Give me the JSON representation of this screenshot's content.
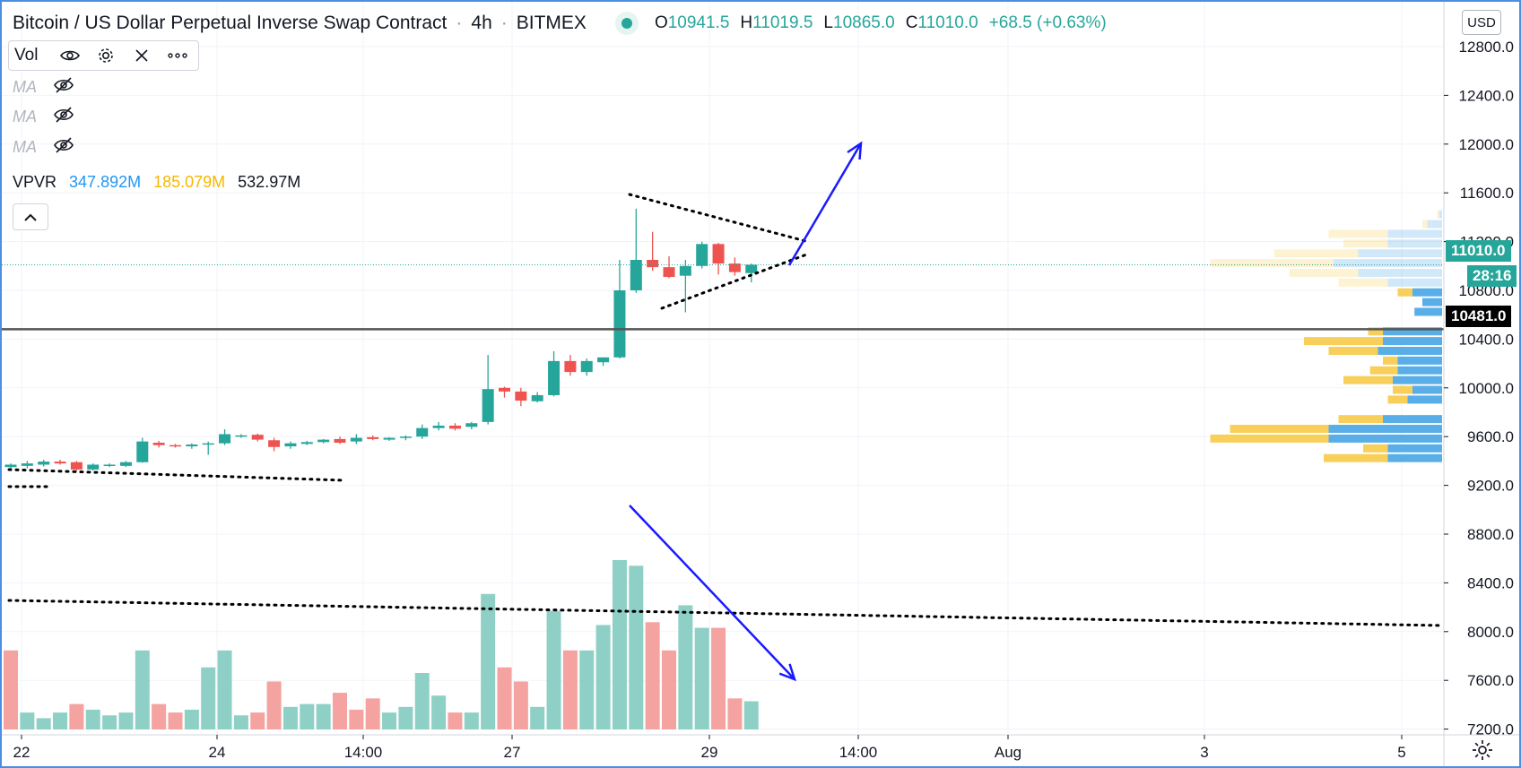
{
  "header": {
    "title": "Bitcoin / US Dollar Perpetual Inverse Swap Contract",
    "interval": "4h",
    "exchange": "BITMEX",
    "ohlc": {
      "o_label": "O",
      "o": "10941.5",
      "h_label": "H",
      "h": "11019.5",
      "l_label": "L",
      "l": "10865.0",
      "c_label": "C",
      "c": "11010.0",
      "change": "+68.5 (+0.63%)"
    }
  },
  "indicators": {
    "vol_label": "Vol",
    "ma_items": [
      {
        "label": "MA"
      },
      {
        "label": "MA"
      },
      {
        "label": "MA"
      }
    ],
    "vpvr": {
      "label": "VPVR",
      "up": "347.892M",
      "down": "185.079M",
      "total": "532.97M"
    }
  },
  "price_axis": {
    "currency": "USD",
    "ticks": [
      "12400.0",
      "12000.0",
      "11600.0",
      "11200.0",
      "10000.0",
      "9600.0",
      "9200.0",
      "8800.0",
      "8400.0",
      "8000.0",
      "7600.0",
      "7200.0"
    ],
    "partial_top": "12800.0",
    "partial_labels": [
      "10800.0",
      "10400.0"
    ],
    "current_price": "11010.0",
    "countdown": "28:16",
    "horizontal_line_price": "10481.0"
  },
  "time_axis": {
    "labels": [
      "22",
      "24",
      "14:00",
      "27",
      "29",
      "14:00",
      "Aug",
      "3",
      "5"
    ]
  },
  "colors": {
    "up": "#26a69a",
    "down": "#ef5350",
    "vol_up": "#8fd0c6",
    "vol_down": "#f4a3a0",
    "vpvr_up": "#5aaee8",
    "vpvr_down": "#f9cf5c",
    "arrow": "#1a1aff"
  },
  "chart_data": {
    "type": "candlestick",
    "interval": "4h",
    "y_range": [
      7100,
      12950
    ],
    "candles": [
      {
        "o": 9350,
        "h": 9380,
        "l": 9330,
        "c": 9370
      },
      {
        "o": 9360,
        "h": 9400,
        "l": 9340,
        "c": 9380
      },
      {
        "o": 9370,
        "h": 9410,
        "l": 9355,
        "c": 9395
      },
      {
        "o": 9395,
        "h": 9410,
        "l": 9370,
        "c": 9380
      },
      {
        "o": 9390,
        "h": 9400,
        "l": 9320,
        "c": 9330
      },
      {
        "o": 9330,
        "h": 9380,
        "l": 9320,
        "c": 9370
      },
      {
        "o": 9360,
        "h": 9380,
        "l": 9350,
        "c": 9370
      },
      {
        "o": 9360,
        "h": 9400,
        "l": 9350,
        "c": 9390
      },
      {
        "o": 9390,
        "h": 9590,
        "l": 9385,
        "c": 9560
      },
      {
        "o": 9550,
        "h": 9565,
        "l": 9510,
        "c": 9530
      },
      {
        "o": 9530,
        "h": 9540,
        "l": 9510,
        "c": 9520
      },
      {
        "o": 9520,
        "h": 9545,
        "l": 9500,
        "c": 9535
      },
      {
        "o": 9535,
        "h": 9560,
        "l": 9450,
        "c": 9545
      },
      {
        "o": 9545,
        "h": 9660,
        "l": 9530,
        "c": 9620
      },
      {
        "o": 9605,
        "h": 9620,
        "l": 9590,
        "c": 9610
      },
      {
        "o": 9615,
        "h": 9625,
        "l": 9560,
        "c": 9575
      },
      {
        "o": 9570,
        "h": 9590,
        "l": 9480,
        "c": 9515
      },
      {
        "o": 9520,
        "h": 9560,
        "l": 9500,
        "c": 9545
      },
      {
        "o": 9540,
        "h": 9565,
        "l": 9530,
        "c": 9555
      },
      {
        "o": 9555,
        "h": 9580,
        "l": 9545,
        "c": 9575
      },
      {
        "o": 9580,
        "h": 9600,
        "l": 9540,
        "c": 9550
      },
      {
        "o": 9560,
        "h": 9620,
        "l": 9540,
        "c": 9590
      },
      {
        "o": 9595,
        "h": 9610,
        "l": 9570,
        "c": 9580
      },
      {
        "o": 9575,
        "h": 9595,
        "l": 9565,
        "c": 9590
      },
      {
        "o": 9590,
        "h": 9610,
        "l": 9570,
        "c": 9600
      },
      {
        "o": 9600,
        "h": 9700,
        "l": 9580,
        "c": 9670
      },
      {
        "o": 9670,
        "h": 9720,
        "l": 9650,
        "c": 9690
      },
      {
        "o": 9690,
        "h": 9710,
        "l": 9650,
        "c": 9665
      },
      {
        "o": 9680,
        "h": 9720,
        "l": 9660,
        "c": 9710
      },
      {
        "o": 9720,
        "h": 10270,
        "l": 9700,
        "c": 9990
      },
      {
        "o": 10000,
        "h": 10010,
        "l": 9920,
        "c": 9970
      },
      {
        "o": 9970,
        "h": 10000,
        "l": 9850,
        "c": 9895
      },
      {
        "o": 9890,
        "h": 9965,
        "l": 9880,
        "c": 9940
      },
      {
        "o": 9940,
        "h": 10300,
        "l": 9930,
        "c": 10220
      },
      {
        "o": 10220,
        "h": 10270,
        "l": 10100,
        "c": 10130
      },
      {
        "o": 10130,
        "h": 10240,
        "l": 10100,
        "c": 10220
      },
      {
        "o": 10210,
        "h": 10250,
        "l": 10180,
        "c": 10250
      },
      {
        "o": 10250,
        "h": 11050,
        "l": 10240,
        "c": 10800
      },
      {
        "o": 10800,
        "h": 11470,
        "l": 10780,
        "c": 11050
      },
      {
        "o": 11050,
        "h": 11280,
        "l": 10960,
        "c": 10990
      },
      {
        "o": 10990,
        "h": 11080,
        "l": 10900,
        "c": 10910
      },
      {
        "o": 10920,
        "h": 11050,
        "l": 10620,
        "c": 11000
      },
      {
        "o": 11000,
        "h": 11200,
        "l": 10980,
        "c": 11180
      },
      {
        "o": 11180,
        "h": 11190,
        "l": 10930,
        "c": 11020
      },
      {
        "o": 11020,
        "h": 11070,
        "l": 10920,
        "c": 10950
      },
      {
        "o": 10941.5,
        "h": 11019.5,
        "l": 10865,
        "c": 11010
      }
    ],
    "volumes": [
      {
        "v": 1.4,
        "up": false
      },
      {
        "v": 0.3,
        "up": true
      },
      {
        "v": 0.2,
        "up": true
      },
      {
        "v": 0.3,
        "up": true
      },
      {
        "v": 0.45,
        "up": false
      },
      {
        "v": 0.35,
        "up": true
      },
      {
        "v": 0.25,
        "up": true
      },
      {
        "v": 0.3,
        "up": true
      },
      {
        "v": 1.4,
        "up": true
      },
      {
        "v": 0.45,
        "up": false
      },
      {
        "v": 0.3,
        "up": false
      },
      {
        "v": 0.35,
        "up": true
      },
      {
        "v": 1.1,
        "up": true
      },
      {
        "v": 1.4,
        "up": true
      },
      {
        "v": 0.25,
        "up": true
      },
      {
        "v": 0.3,
        "up": false
      },
      {
        "v": 0.85,
        "up": false
      },
      {
        "v": 0.4,
        "up": true
      },
      {
        "v": 0.45,
        "up": true
      },
      {
        "v": 0.45,
        "up": true
      },
      {
        "v": 0.65,
        "up": false
      },
      {
        "v": 0.35,
        "up": false
      },
      {
        "v": 0.55,
        "up": false
      },
      {
        "v": 0.3,
        "up": true
      },
      {
        "v": 0.4,
        "up": true
      },
      {
        "v": 1.0,
        "up": true
      },
      {
        "v": 0.6,
        "up": true
      },
      {
        "v": 0.3,
        "up": false
      },
      {
        "v": 0.3,
        "up": true
      },
      {
        "v": 2.4,
        "up": true
      },
      {
        "v": 1.1,
        "up": false
      },
      {
        "v": 0.85,
        "up": false
      },
      {
        "v": 0.4,
        "up": true
      },
      {
        "v": 2.1,
        "up": true
      },
      {
        "v": 1.4,
        "up": false
      },
      {
        "v": 1.4,
        "up": true
      },
      {
        "v": 1.85,
        "up": true
      },
      {
        "v": 3.0,
        "up": true
      },
      {
        "v": 2.9,
        "up": true
      },
      {
        "v": 1.9,
        "up": false
      },
      {
        "v": 1.4,
        "up": false
      },
      {
        "v": 2.2,
        "up": true
      },
      {
        "v": 1.8,
        "up": true
      },
      {
        "v": 1.8,
        "up": false
      },
      {
        "v": 0.55,
        "up": false
      },
      {
        "v": 0.5,
        "up": true
      }
    ],
    "volume_profile": [
      {
        "price": 11420,
        "up": 3,
        "down": 2
      },
      {
        "price": 11340,
        "up": 15,
        "down": 5
      },
      {
        "price": 11260,
        "up": 55,
        "down": 60
      },
      {
        "price": 11180,
        "up": 55,
        "down": 45
      },
      {
        "price": 11100,
        "up": 85,
        "down": 85
      },
      {
        "price": 11020,
        "up": 110,
        "down": 125
      },
      {
        "price": 10940,
        "up": 85,
        "down": 70
      },
      {
        "price": 10860,
        "up": 55,
        "down": 50
      },
      {
        "price": 10780,
        "up": 30,
        "down": 15
      },
      {
        "price": 10700,
        "up": 20,
        "down": 0
      },
      {
        "price": 10620,
        "up": 28,
        "down": 0
      },
      {
        "price": 10460,
        "up": 60,
        "down": 15
      },
      {
        "price": 10380,
        "up": 60,
        "down": 80
      },
      {
        "price": 10300,
        "up": 65,
        "down": 50
      },
      {
        "price": 10220,
        "up": 45,
        "down": 15
      },
      {
        "price": 10140,
        "up": 45,
        "down": 28
      },
      {
        "price": 10060,
        "up": 50,
        "down": 50
      },
      {
        "price": 9980,
        "up": 30,
        "down": 20
      },
      {
        "price": 9900,
        "up": 35,
        "down": 20
      },
      {
        "price": 9740,
        "up": 60,
        "down": 45
      },
      {
        "price": 9660,
        "up": 115,
        "down": 100
      },
      {
        "price": 9580,
        "up": 115,
        "down": 120
      },
      {
        "price": 9500,
        "up": 55,
        "down": 25
      },
      {
        "price": 9420,
        "up": 55,
        "down": 65
      }
    ]
  }
}
